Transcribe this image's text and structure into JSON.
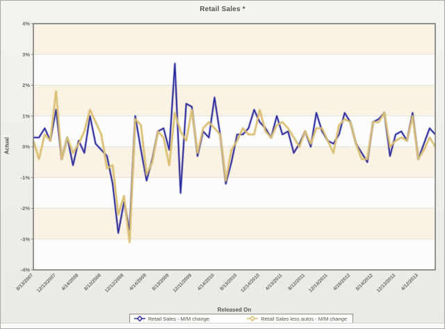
{
  "window": {
    "title": "Retail Sales *"
  },
  "chart_data": {
    "type": "line",
    "title": "Retail Sales *",
    "xlabel": "Released On",
    "ylabel": "Actual",
    "ylim": [
      -4,
      4
    ],
    "y_tick_labels": [
      "4%",
      "3%",
      "2%",
      "1%",
      "0%",
      "-1%",
      "-2%",
      "-3%",
      "-4%"
    ],
    "x_tick_labels": [
      "8/13/2007",
      "12/13/2007",
      "4/14/2008",
      "8/13/2008",
      "12/12/2008",
      "4/14/2009",
      "8/13/2009",
      "12/11/2009",
      "4/14/2010",
      "8/13/2010",
      "12/14/2010",
      "4/13/2011",
      "8/12/2011",
      "12/13/2011",
      "4/16/2012",
      "8/14/2012",
      "12/13/2012",
      "4/12/2013"
    ],
    "points_per_tick": 4,
    "grid": "horizontal-bands",
    "band_colors": [
      "#faf2e3",
      "#fcfcfb"
    ],
    "legend_position": "bottom",
    "series": [
      {
        "name": "Retail Sales - M/M change",
        "color": "#28289b",
        "values": [
          0.3,
          0.3,
          0.6,
          0.2,
          1.2,
          -0.4,
          0.3,
          -0.6,
          0.2,
          -0.2,
          1.0,
          0.1,
          -0.1,
          -0.3,
          -1.2,
          -2.8,
          -1.8,
          -2.7,
          1.0,
          -0.1,
          -1.1,
          -0.4,
          0.5,
          0.6,
          -0.1,
          2.7,
          -1.5,
          1.4,
          1.3,
          -0.3,
          0.5,
          0.3,
          1.6,
          0.4,
          -1.2,
          -0.5,
          0.4,
          0.4,
          0.6,
          1.2,
          0.8,
          0.6,
          0.3,
          1.0,
          0.4,
          0.5,
          -0.2,
          0.1,
          0.5,
          0.0,
          1.1,
          0.5,
          0.2,
          0.1,
          0.4,
          1.1,
          0.8,
          0.1,
          -0.2,
          -0.5,
          0.8,
          0.9,
          1.1,
          -0.3,
          0.4,
          0.5,
          0.2,
          1.1,
          -0.4,
          0.1,
          0.6,
          0.4
        ]
      },
      {
        "name": "Retail Sales less autos - M/M change",
        "color": "#d9bd70",
        "values": [
          0.2,
          -0.4,
          0.4,
          0.2,
          1.8,
          -0.4,
          0.3,
          -0.2,
          0.1,
          0.5,
          1.2,
          0.8,
          0.4,
          -0.7,
          -0.6,
          -2.2,
          -1.6,
          -3.1,
          0.9,
          0.7,
          -0.9,
          -0.5,
          0.5,
          0.3,
          -0.6,
          1.1,
          0.5,
          0.2,
          1.2,
          -0.2,
          0.6,
          0.8,
          0.6,
          0.4,
          -1.1,
          -0.1,
          0.2,
          0.6,
          0.4,
          0.4,
          1.2,
          0.5,
          0.3,
          0.7,
          0.8,
          0.6,
          0.3,
          0.0,
          0.5,
          0.1,
          0.6,
          0.6,
          0.2,
          -0.2,
          0.7,
          0.9,
          0.8,
          0.1,
          -0.4,
          -0.4,
          0.8,
          0.8,
          1.1,
          0.0,
          0.2,
          0.3,
          0.2,
          1.0,
          -0.4,
          -0.1,
          0.3,
          0.0
        ]
      }
    ]
  }
}
